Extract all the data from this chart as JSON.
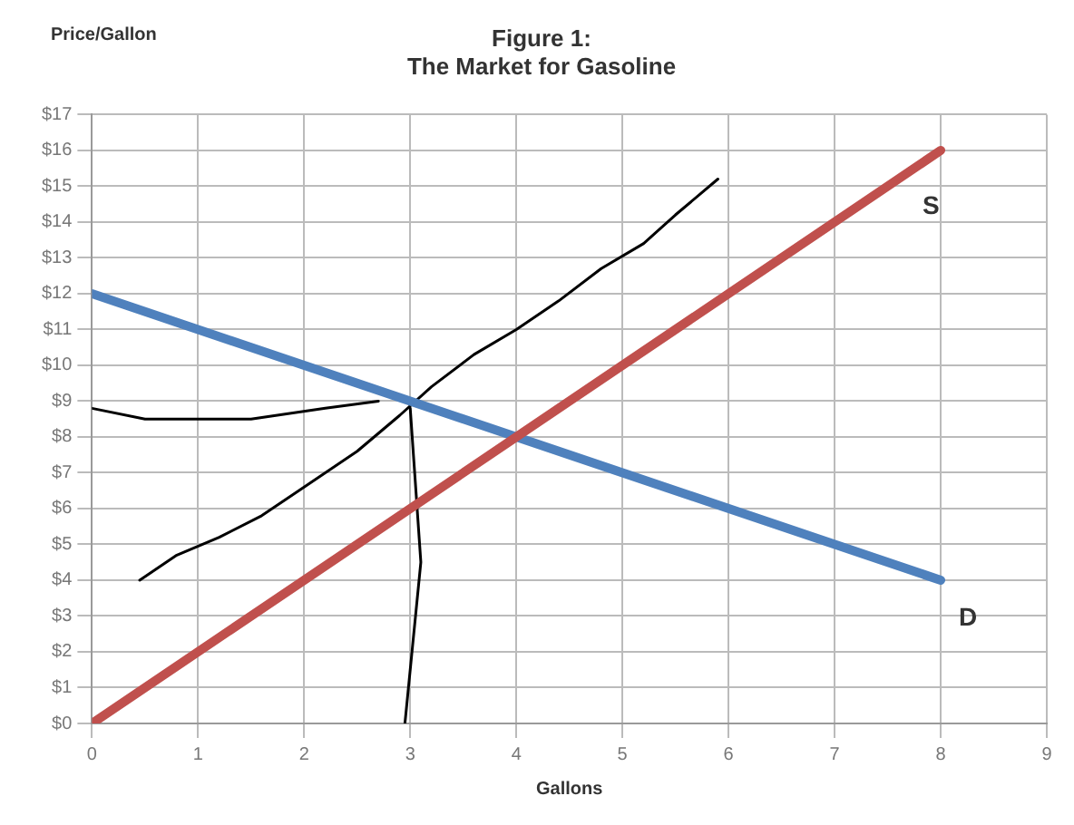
{
  "chart_data": {
    "type": "line",
    "title": "Figure 1:\nThe Market for Gasoline",
    "xlabel": "Gallons",
    "ylabel": "Price/Gallon",
    "xlim": [
      0,
      9
    ],
    "xticks": [
      0,
      1,
      2,
      3,
      4,
      5,
      6,
      7,
      8,
      9
    ],
    "ylim": [
      0,
      17
    ],
    "yticks": [
      {
        "value": 0,
        "label": "$0"
      },
      {
        "value": 1,
        "label": "$1"
      },
      {
        "value": 2,
        "label": "$2"
      },
      {
        "value": 3,
        "label": "$3"
      },
      {
        "value": 4,
        "label": "$4"
      },
      {
        "value": 5,
        "label": "$5"
      },
      {
        "value": 6,
        "label": "$6"
      },
      {
        "value": 7,
        "label": "$7"
      },
      {
        "value": 8,
        "label": "$8"
      },
      {
        "value": 9,
        "label": "$9"
      },
      {
        "value": 10,
        "label": "$10"
      },
      {
        "value": 11,
        "label": "$11"
      },
      {
        "value": 12,
        "label": "$12"
      },
      {
        "value": 13,
        "label": "$13"
      },
      {
        "value": 14,
        "label": "$14"
      },
      {
        "value": 15,
        "label": "$15"
      },
      {
        "value": 16,
        "label": "$16"
      },
      {
        "value": 17,
        "label": "$17"
      }
    ],
    "grid": true,
    "legend": false,
    "marker": "none",
    "line_style": "solid",
    "series": [
      {
        "name": "S",
        "color": "#c0504d",
        "x": [
          0,
          8
        ],
        "values": [
          0,
          16
        ]
      },
      {
        "name": "D",
        "color": "#4f81bd",
        "x": [
          0,
          8
        ],
        "values": [
          12,
          4
        ]
      },
      {
        "color": "#000000",
        "x": [
          0.45,
          0.8,
          1.2,
          1.6,
          2.0,
          2.5,
          2.9,
          3.2,
          3.6,
          4.0,
          4.4,
          4.8,
          5.2,
          5.5,
          5.9
        ],
        "values": [
          4.0,
          4.7,
          5.2,
          5.8,
          6.6,
          7.6,
          8.6,
          9.4,
          10.3,
          11.0,
          11.8,
          12.7,
          13.4,
          14.2,
          15.2
        ]
      },
      {
        "color": "#000000",
        "x": [
          0,
          0.5,
          1.5,
          2.2,
          2.7
        ],
        "values": [
          8.8,
          8.5,
          8.5,
          8.8,
          9.0
        ]
      },
      {
        "color": "#000000",
        "x": [
          3.0,
          3.1,
          2.95
        ],
        "values": [
          8.8,
          4.5,
          0
        ]
      }
    ]
  }
}
